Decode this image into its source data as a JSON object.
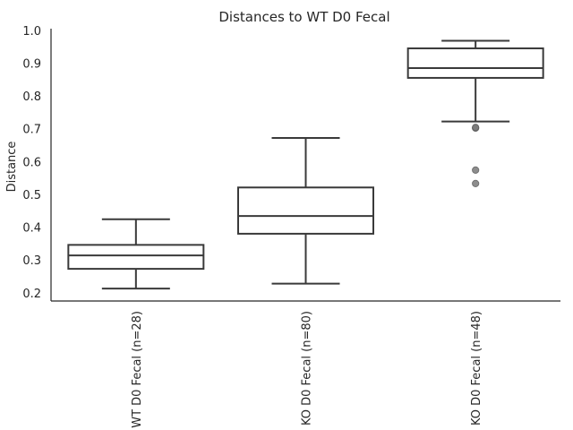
{
  "chart_data": {
    "type": "box",
    "title": "Distances to WT D0 Fecal",
    "xlabel": "",
    "ylabel": "Distance",
    "ylim": [
      0.175,
      1.005
    ],
    "yticks": [
      "0.2",
      "0.3",
      "0.4",
      "0.5",
      "0.6",
      "0.7",
      "0.8",
      "0.9",
      "1.0"
    ],
    "grid": false,
    "categories": [
      "WT D0 Fecal (n=28)",
      "KO D0 Fecal (n=80)",
      "KO D0 Fecal (n=48)"
    ],
    "boxes": [
      {
        "whisker_low": 0.213,
        "q1": 0.273,
        "median": 0.314,
        "q3": 0.346,
        "whisker_high": 0.424,
        "outliers": []
      },
      {
        "whisker_low": 0.228,
        "q1": 0.38,
        "median": 0.434,
        "q3": 0.521,
        "whisker_high": 0.672,
        "outliers": []
      },
      {
        "whisker_low": 0.722,
        "q1": 0.855,
        "median": 0.885,
        "q3": 0.945,
        "whisker_high": 0.968,
        "outliers": [
          0.702,
          0.704,
          0.574,
          0.533
        ]
      }
    ]
  }
}
